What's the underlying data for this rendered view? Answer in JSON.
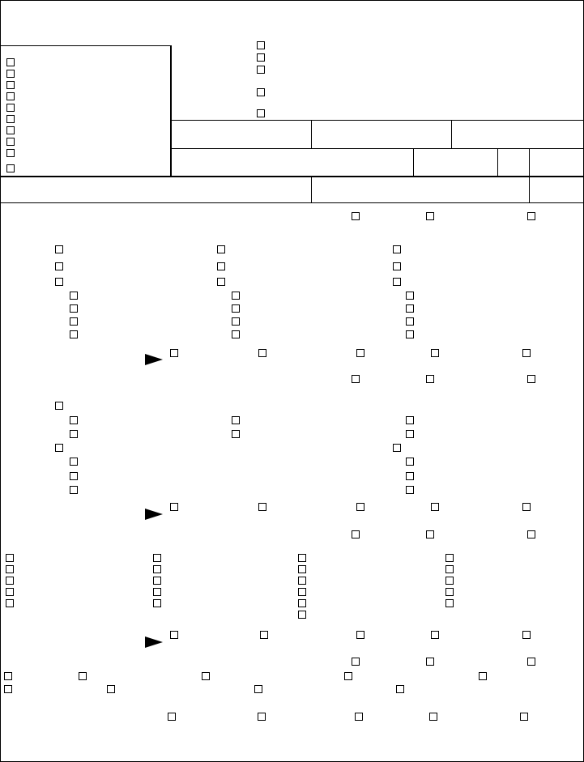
{
  "form": {
    "checkboxes_checked": false,
    "line_color": "#000000",
    "background": "#ffffff"
  }
}
